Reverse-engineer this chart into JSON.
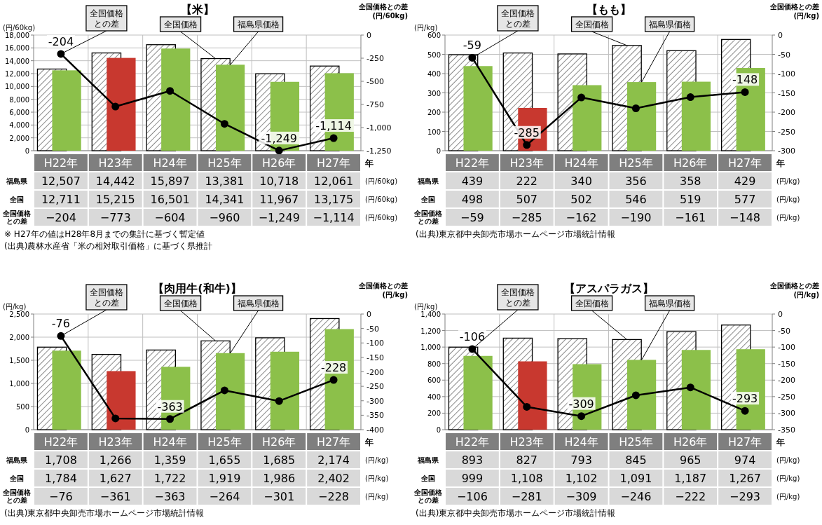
{
  "chart_data": [
    {
      "type": "bar",
      "title": "【米】",
      "ylabel": "(円/60kg)",
      "y2label": "全国価格との差\n(円/60kg)",
      "xlabel": "年",
      "grid": true,
      "marker": "circle",
      "categories": [
        "H22年",
        "H23年",
        "H24年",
        "H25年",
        "H26年",
        "H27年"
      ],
      "ylim": [
        0,
        18000
      ],
      "yticks": [
        0,
        {
          "value": 2000,
          "label": "2,000"
        },
        {
          "value": 4000,
          "label": "4,000"
        },
        {
          "value": 6000,
          "label": "6,000"
        },
        {
          "value": 8000,
          "label": "8,000"
        },
        {
          "value": 10000,
          "label": "10,000"
        },
        {
          "value": 12000,
          "label": "12,000"
        },
        {
          "value": 14000,
          "label": "14,000"
        },
        {
          "value": 16000,
          "label": "16,000"
        },
        {
          "value": 18000,
          "label": "18,000"
        }
      ],
      "y2lim": [
        -1250,
        0
      ],
      "y2ticks": [
        0,
        -250,
        -500,
        -750,
        {
          "value": -1000,
          "label": "-1,000"
        },
        {
          "value": -1250,
          "label": "-1,250"
        }
      ],
      "series": [
        {
          "name": "福島県価格",
          "type": "bar",
          "colors": [
            "#8cc04a",
            "#c8382f",
            "#8cc04a",
            "#8cc04a",
            "#8cc04a",
            "#8cc04a"
          ],
          "values": [
            12507,
            14442,
            15897,
            13381,
            10718,
            12061
          ],
          "value_labels": [
            "12,507",
            "14,442",
            "15,897",
            "13,381",
            "10,718",
            "12,061"
          ]
        },
        {
          "name": "全国価格",
          "type": "bar",
          "color": "#000000",
          "values": [
            12711,
            15215,
            16501,
            14341,
            11967,
            13175
          ],
          "value_labels": [
            "12,711",
            "15,215",
            "16,501",
            "14,341",
            "11,967",
            "13,175"
          ]
        },
        {
          "name": "全国価格との差",
          "type": "line",
          "axis": "y2",
          "color": "#000000",
          "values": [
            -204,
            -773,
            -604,
            -960,
            -1249,
            -1114
          ],
          "value_labels": [
            "-204",
            null,
            null,
            null,
            "-1,249",
            "-1,114"
          ]
        }
      ],
      "annotations": [
        "福島県",
        "全国",
        "全国価格との差",
        "−204",
        "−773",
        "−604",
        "−960",
        "−1,249",
        "−1,114",
        "※ H27年の値はH28年8月までの集計に基づく暫定値",
        "(出典)農林水産省「米の相対取引価格」に基づく県推計"
      ]
    },
    {
      "type": "bar",
      "title": "【もも】",
      "ylabel": "(円/kg)",
      "y2label": "全国価格との差\n(円/kg)",
      "xlabel": "年",
      "grid": true,
      "marker": "circle",
      "categories": [
        "H22年",
        "H23年",
        "H24年",
        "H25年",
        "H26年",
        "H27年"
      ],
      "ylim": [
        0,
        600
      ],
      "yticks": [
        0,
        100,
        200,
        300,
        400,
        500,
        600
      ],
      "y2lim": [
        -300,
        0
      ],
      "y2ticks": [
        0,
        -50,
        -100,
        -150,
        -200,
        -250,
        -300
      ],
      "series": [
        {
          "name": "福島県価格",
          "type": "bar",
          "colors": [
            "#8cc04a",
            "#c8382f",
            "#8cc04a",
            "#8cc04a",
            "#8cc04a",
            "#8cc04a"
          ],
          "values": [
            439,
            222,
            340,
            356,
            358,
            429
          ],
          "value_labels": [
            "439",
            "222",
            "340",
            "356",
            "358",
            "429"
          ]
        },
        {
          "name": "全国価格",
          "type": "bar",
          "color": "#000000",
          "values": [
            498,
            507,
            502,
            546,
            519,
            577
          ],
          "value_labels": [
            "498",
            "507",
            "502",
            "546",
            "519",
            "577"
          ]
        },
        {
          "name": "全国価格との差",
          "type": "line",
          "axis": "y2",
          "color": "#000000",
          "values": [
            -59,
            -285,
            -162,
            -190,
            -161,
            -148
          ],
          "value_labels": [
            "-59",
            "-285",
            null,
            null,
            null,
            "-148"
          ]
        }
      ],
      "annotations": [
        "福島県",
        "全国",
        "全国価格との差",
        "−59",
        "−285",
        "−162",
        "−190",
        "−161",
        "−148",
        "(出典)東京都中央卸売市場ホームページ市場統計情報"
      ]
    },
    {
      "type": "bar",
      "title": "【肉用牛(和牛)】",
      "ylabel": "(円/kg)",
      "y2label": "全国価格との差\n(円/kg)",
      "xlabel": "年",
      "grid": true,
      "marker": "circle",
      "categories": [
        "H22年",
        "H23年",
        "H24年",
        "H25年",
        "H26年",
        "H27年"
      ],
      "ylim": [
        0,
        2500
      ],
      "yticks": [
        0,
        500,
        {
          "value": 1000,
          "label": "1,000"
        },
        {
          "value": 1500,
          "label": "1,500"
        },
        {
          "value": 2000,
          "label": "2,000"
        },
        {
          "value": 2500,
          "label": "2,500"
        }
      ],
      "y2lim": [
        -400,
        0
      ],
      "y2ticks": [
        0,
        -50,
        -100,
        -150,
        -200,
        -250,
        -300,
        -350,
        -400
      ],
      "series": [
        {
          "name": "福島県価格",
          "type": "bar",
          "colors": [
            "#8cc04a",
            "#c8382f",
            "#8cc04a",
            "#8cc04a",
            "#8cc04a",
            "#8cc04a"
          ],
          "values": [
            1708,
            1266,
            1359,
            1655,
            1685,
            2174
          ],
          "value_labels": [
            "1,708",
            "1,266",
            "1,359",
            "1,655",
            "1,685",
            "2,174"
          ]
        },
        {
          "name": "全国価格",
          "type": "bar",
          "color": "#000000",
          "values": [
            1784,
            1627,
            1722,
            1919,
            1986,
            2402
          ],
          "value_labels": [
            "1,784",
            "1,627",
            "1,722",
            "1,919",
            "1,986",
            "2,402"
          ]
        },
        {
          "name": "全国価格との差",
          "type": "line",
          "axis": "y2",
          "color": "#000000",
          "values": [
            -76,
            -361,
            -363,
            -264,
            -301,
            -228
          ],
          "value_labels": [
            "-76",
            null,
            "-363",
            null,
            null,
            "-228"
          ]
        }
      ],
      "annotations": [
        "福島県",
        "全国",
        "全国価格との差",
        "−76",
        "−361",
        "−363",
        "−264",
        "−301",
        "−228",
        "(出典)東京都中央卸売市場ホームページ市場統計情報"
      ]
    },
    {
      "type": "bar",
      "title": "【アスパラガス】",
      "ylabel": "(円/kg)",
      "y2label": "全国価格との差\n(円/kg)",
      "xlabel": "年",
      "grid": true,
      "marker": "circle",
      "categories": [
        "H22年",
        "H23年",
        "H24年",
        "H25年",
        "H26年",
        "H27年"
      ],
      "ylim": [
        0,
        1400
      ],
      "yticks": [
        0,
        200,
        400,
        600,
        800,
        {
          "value": 1000,
          "label": "1,000"
        },
        {
          "value": 1200,
          "label": "1,200"
        },
        {
          "value": 1400,
          "label": "1,400"
        }
      ],
      "y2lim": [
        -350,
        0
      ],
      "y2ticks": [
        0,
        -50,
        -100,
        -150,
        -200,
        -250,
        -300,
        -350
      ],
      "series": [
        {
          "name": "福島県価格",
          "type": "bar",
          "colors": [
            "#8cc04a",
            "#c8382f",
            "#8cc04a",
            "#8cc04a",
            "#8cc04a",
            "#8cc04a"
          ],
          "values": [
            893,
            827,
            793,
            845,
            965,
            974
          ],
          "value_labels": [
            "893",
            "827",
            "793",
            "845",
            "965",
            "974"
          ]
        },
        {
          "name": "全国価格",
          "type": "bar",
          "color": "#000000",
          "values": [
            999,
            1108,
            1102,
            1091,
            1187,
            1267
          ],
          "value_labels": [
            "999",
            "1,108",
            "1,102",
            "1,091",
            "1,187",
            "1,267"
          ]
        },
        {
          "name": "全国価格との差",
          "type": "line",
          "axis": "y2",
          "color": "#000000",
          "values": [
            -106,
            -281,
            -309,
            -246,
            -222,
            -293
          ],
          "value_labels": [
            "-106",
            null,
            "-309",
            null,
            null,
            "-293"
          ]
        }
      ],
      "annotations": [
        "福島県",
        "全国",
        "全国価格との差",
        "−106",
        "−281",
        "−309",
        "−246",
        "−222",
        "−293",
        "(出典)東京都中央卸売市場ホームページ市場統計情報"
      ]
    }
  ]
}
